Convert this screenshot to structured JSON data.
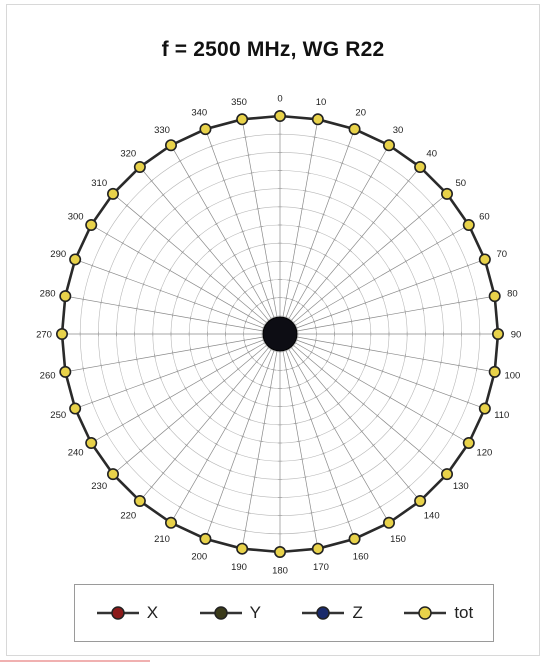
{
  "chart_data": {
    "type": "polar",
    "title": "f = 2500 MHz, WG R22",
    "angle_labels": [
      "0",
      "10",
      "20",
      "30",
      "40",
      "50",
      "60",
      "70",
      "80",
      "90",
      "100",
      "110",
      "120",
      "130",
      "140",
      "150",
      "160",
      "170",
      "180",
      "190",
      "200",
      "210",
      "220",
      "230",
      "240",
      "250",
      "260",
      "270",
      "280",
      "290",
      "300",
      "310",
      "320",
      "330",
      "340",
      "350"
    ],
    "angles_deg": [
      0,
      10,
      20,
      30,
      40,
      50,
      60,
      70,
      80,
      90,
      100,
      110,
      120,
      130,
      140,
      150,
      160,
      170,
      180,
      190,
      200,
      210,
      220,
      230,
      240,
      250,
      260,
      270,
      280,
      290,
      300,
      310,
      320,
      330,
      340,
      350
    ],
    "series": [
      {
        "name": "X",
        "color": "#8b1a1a",
        "values": [
          0,
          0,
          0,
          0,
          0,
          0,
          0,
          0,
          0,
          0,
          0,
          0,
          0,
          0,
          0,
          0,
          0,
          0,
          0,
          0,
          0,
          0,
          0,
          0,
          0,
          0,
          0,
          0,
          0,
          0,
          0,
          0,
          0,
          0,
          0,
          0
        ]
      },
      {
        "name": "Y",
        "color": "#3a3a1a",
        "values": [
          0,
          0,
          0,
          0,
          0,
          0,
          0,
          0,
          0,
          0,
          0,
          0,
          0,
          0,
          0,
          0,
          0,
          0,
          0,
          0,
          0,
          0,
          0,
          0,
          0,
          0,
          0,
          0,
          0,
          0,
          0,
          0,
          0,
          0,
          0,
          0
        ]
      },
      {
        "name": "Z",
        "color": "#1a2a6b",
        "values": [
          0,
          0,
          0,
          0,
          0,
          0,
          0,
          0,
          0,
          0,
          0,
          0,
          0,
          0,
          0,
          0,
          0,
          0,
          0,
          0,
          0,
          0,
          0,
          0,
          0,
          0,
          0,
          0,
          0,
          0,
          0,
          0,
          0,
          0,
          0,
          0
        ]
      },
      {
        "name": "tot",
        "color": "#e8d24a",
        "values": [
          1,
          1,
          1,
          1,
          1,
          1,
          1,
          1,
          1,
          1,
          1,
          1,
          1,
          1,
          1,
          1,
          1,
          1,
          1,
          1,
          1,
          1,
          1,
          1,
          1,
          1,
          1,
          1,
          1,
          1,
          1,
          1,
          1,
          1,
          1,
          1
        ]
      }
    ],
    "radial_range": [
      0,
      1
    ],
    "grid": true,
    "legend_position": "bottom"
  }
}
